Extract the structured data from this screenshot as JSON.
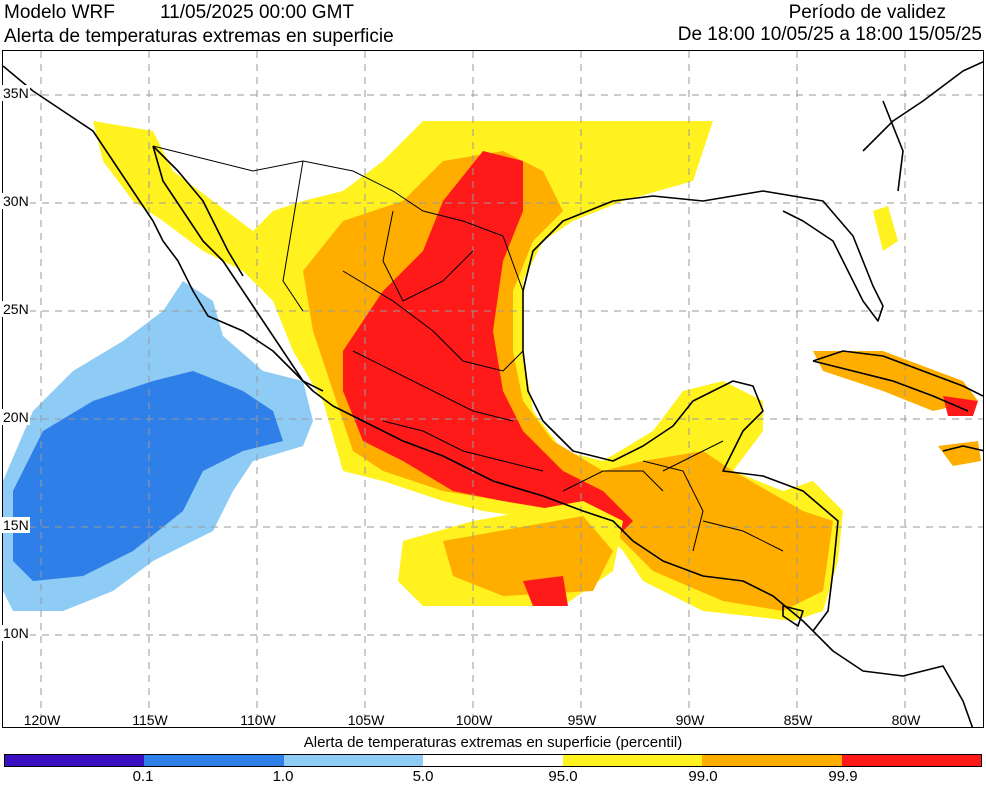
{
  "header": {
    "model": "Modelo WRF",
    "run_time": "11/05/2025 00:00 GMT",
    "product": "Alerta de temperaturas extremas en superficie",
    "validity_title": "Período de validez",
    "validity_range": "De 18:00 10/05/25 a 18:00 15/05/25"
  },
  "map": {
    "lat_labels": [
      "35N",
      "30N",
      "25N",
      "20N",
      "15N",
      "10N"
    ],
    "lon_labels": [
      "120W",
      "115W",
      "110W",
      "105W",
      "100W",
      "95W",
      "90W",
      "85W",
      "80W"
    ],
    "land_color": "#ffffff",
    "ocean_color": "#ffffff",
    "grid_color": "#9a9a9a",
    "border_color": "#000000"
  },
  "colorbar": {
    "title": "Alerta de temperaturas extremas en superficie (percentil)",
    "ticks": [
      "0.1",
      "1.0",
      "5.0",
      "95.0",
      "99.0",
      "99.9"
    ],
    "colors": [
      "#3a0fbf",
      "#2f7fe8",
      "#8ecbf5",
      "#ffffff",
      "#fff21f",
      "#ffae00",
      "#ff1a1a"
    ]
  }
}
